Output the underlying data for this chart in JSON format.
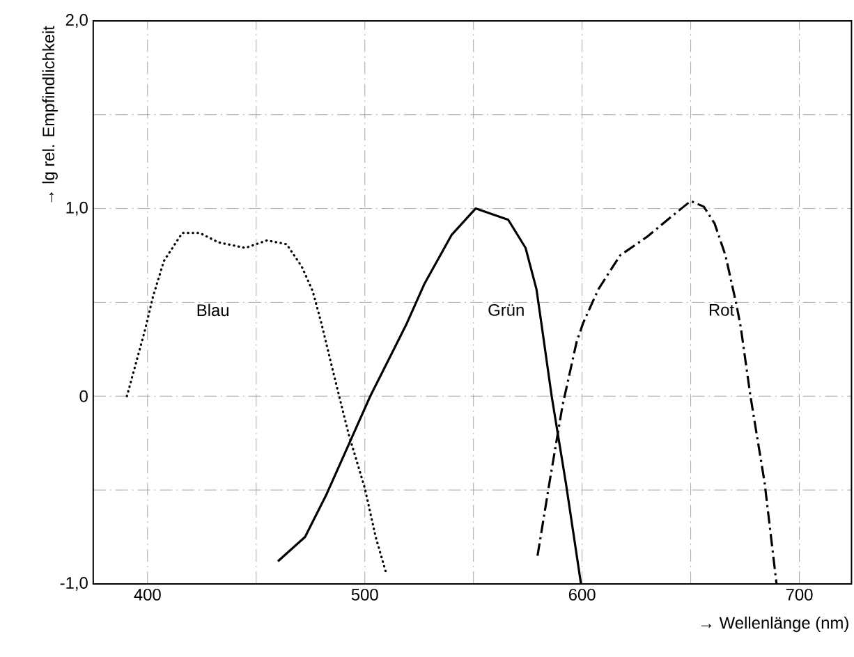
{
  "chart_data": {
    "type": "line",
    "xlabel": "→ Wellenlänge (nm)",
    "ylabel": "→ lg rel. Empfindlichkeit",
    "xlim": [
      375,
      724
    ],
    "ylim": [
      -1.0,
      2.0
    ],
    "xticks": [
      400,
      {
        "value": 450,
        "label": null
      },
      500,
      {
        "value": 550,
        "label": null
      },
      600,
      {
        "value": 650,
        "label": null
      },
      700
    ],
    "yticks": [
      {
        "value": -1.0,
        "label": "-1,0"
      },
      {
        "value": -0.5,
        "label": null
      },
      0,
      {
        "value": 0.5,
        "label": null
      },
      {
        "value": 1.0,
        "label": "1,0"
      },
      {
        "value": 1.5,
        "label": null
      },
      {
        "value": 2.0,
        "label": "2,0"
      }
    ],
    "grid": true,
    "marker": "none",
    "series": [
      {
        "name": "Blau",
        "color": "#000000",
        "line_style": "dotted",
        "x": [
          390.5,
          399,
          402.5,
          407.5,
          416,
          424,
          432.5,
          445,
          455,
          464,
          471,
          476,
          480,
          485,
          492.5,
          500,
          505,
          510
        ],
        "values": [
          0,
          0.36,
          0.53,
          0.72,
          0.87,
          0.87,
          0.82,
          0.79,
          0.83,
          0.81,
          0.69,
          0.56,
          0.39,
          0.15,
          -0.2,
          -0.49,
          -0.75,
          -0.95
        ]
      },
      {
        "name": "Grün",
        "color": "#000000",
        "line_style": "solid",
        "x": [
          460,
          472.5,
          482.5,
          492.5,
          502.5,
          512.5,
          519,
          527.5,
          540,
          551,
          566,
          574,
          579,
          581,
          586,
          592.5,
          599.5
        ],
        "values": [
          -0.88,
          -0.75,
          -0.52,
          -0.26,
          0,
          0.23,
          0.38,
          0.6,
          0.86,
          1.0,
          0.94,
          0.79,
          0.57,
          0.41,
          0,
          -0.46,
          -1.0
        ]
      },
      {
        "name": "Rot",
        "color": "#000000",
        "line_style": "dashdot",
        "x": [
          579.5,
          585,
          591,
          597.5,
          600.5,
          607.5,
          617.5,
          630,
          642.5,
          650,
          656,
          661,
          666,
          671,
          673,
          677.5,
          684,
          689.5
        ],
        "values": [
          -0.85,
          -0.46,
          -0.05,
          0.29,
          0.39,
          0.57,
          0.75,
          0.85,
          0.97,
          1.04,
          1.01,
          0.92,
          0.75,
          0.49,
          0.37,
          0,
          -0.46,
          -1.0
        ]
      }
    ]
  }
}
